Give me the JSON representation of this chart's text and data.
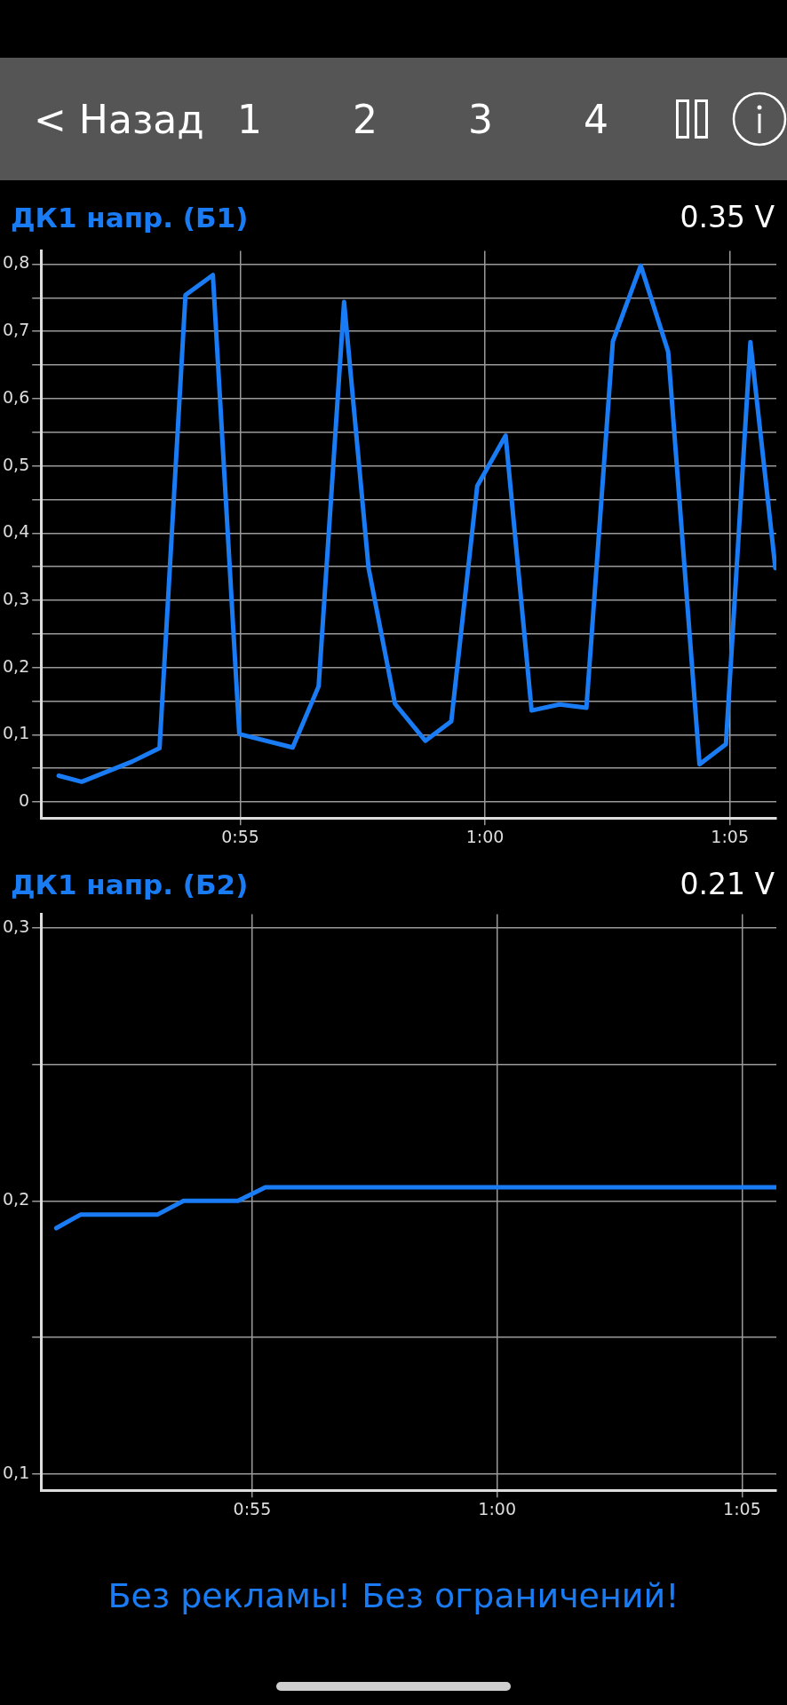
{
  "chart_data": [
    {
      "type": "line",
      "title": "ДК1 напр. (Б1)",
      "subtitle": "0.35 V",
      "annotations": [
        "< Назад",
        "1",
        "2",
        "3",
        "4"
      ],
      "x": [
        51.29,
        51.76,
        52.79,
        53.35,
        53.88,
        54.44,
        54.98,
        56.07,
        56.6,
        57.12,
        57.62,
        58.16,
        58.78,
        59.31,
        59.84,
        60.42,
        60.95,
        61.52,
        62.07,
        62.61,
        63.18,
        63.74,
        64.38,
        64.92,
        65.42,
        65.93
      ],
      "series": [
        {
          "color": "#1a7cf5",
          "values": [
            0.039,
            0.03,
            0.06,
            0.08,
            0.754,
            0.784,
            0.101,
            0.081,
            0.172,
            0.744,
            0.348,
            0.146,
            0.091,
            0.12,
            0.47,
            0.545,
            0.136,
            0.145,
            0.14,
            0.685,
            0.798,
            0.67,
            0.056,
            0.086,
            0.684,
            0.348
          ]
        }
      ],
      "xlim": [
        50.93,
        65.95
      ],
      "xticks": [
        {
          "value": 55,
          "label": "0:55"
        },
        {
          "value": 60,
          "label": "1:00"
        },
        {
          "value": 65,
          "label": "1:05"
        }
      ],
      "ylim": [
        -0.024,
        0.82
      ],
      "yticks": [
        0,
        {
          "value": 0.05,
          "label": null
        },
        {
          "value": 0.1,
          "label": "0,1"
        },
        {
          "value": 0.15,
          "label": null
        },
        {
          "value": 0.2,
          "label": "0,2"
        },
        {
          "value": 0.25,
          "label": null
        },
        {
          "value": 0.3,
          "label": "0,3"
        },
        {
          "value": 0.35,
          "label": null
        },
        {
          "value": 0.4,
          "label": "0,4"
        },
        {
          "value": 0.45,
          "label": null
        },
        {
          "value": 0.5,
          "label": "0,5"
        },
        {
          "value": 0.55,
          "label": null
        },
        {
          "value": 0.6,
          "label": "0,6"
        },
        {
          "value": 0.65,
          "label": null
        },
        {
          "value": 0.7,
          "label": "0,7"
        },
        {
          "value": 0.75,
          "label": null
        },
        {
          "value": 0.8,
          "label": "0,8"
        }
      ],
      "grid": true,
      "marker": "none",
      "line_style": "solid"
    },
    {
      "type": "line",
      "title": "ДК1 напр. (Б2)",
      "subtitle": "0.21 V",
      "annotations": [
        "Без рекламы! Без ограничений!"
      ],
      "x": [
        51.0,
        51.5,
        53.07,
        53.6,
        54.71,
        55.27,
        65.7
      ],
      "series": [
        {
          "color": "#1a7cf5",
          "values": [
            0.19,
            0.195,
            0.195,
            0.2,
            0.2,
            0.205,
            0.205
          ]
        }
      ],
      "xlim": [
        50.69,
        65.7
      ],
      "xticks": [
        {
          "value": 55,
          "label": "0:55"
        },
        {
          "value": 60,
          "label": "1:00"
        },
        {
          "value": 65,
          "label": "1:05"
        }
      ],
      "ylim": [
        0.094,
        0.305
      ],
      "yticks": [
        {
          "value": 0.1,
          "label": "0,1"
        },
        {
          "value": 0.15,
          "label": null
        },
        {
          "value": 0.2,
          "label": "0,2"
        },
        {
          "value": 0.25,
          "label": null
        },
        {
          "value": 0.3,
          "label": "0,3"
        }
      ],
      "grid": true,
      "marker": "none",
      "line_style": "solid"
    }
  ]
}
